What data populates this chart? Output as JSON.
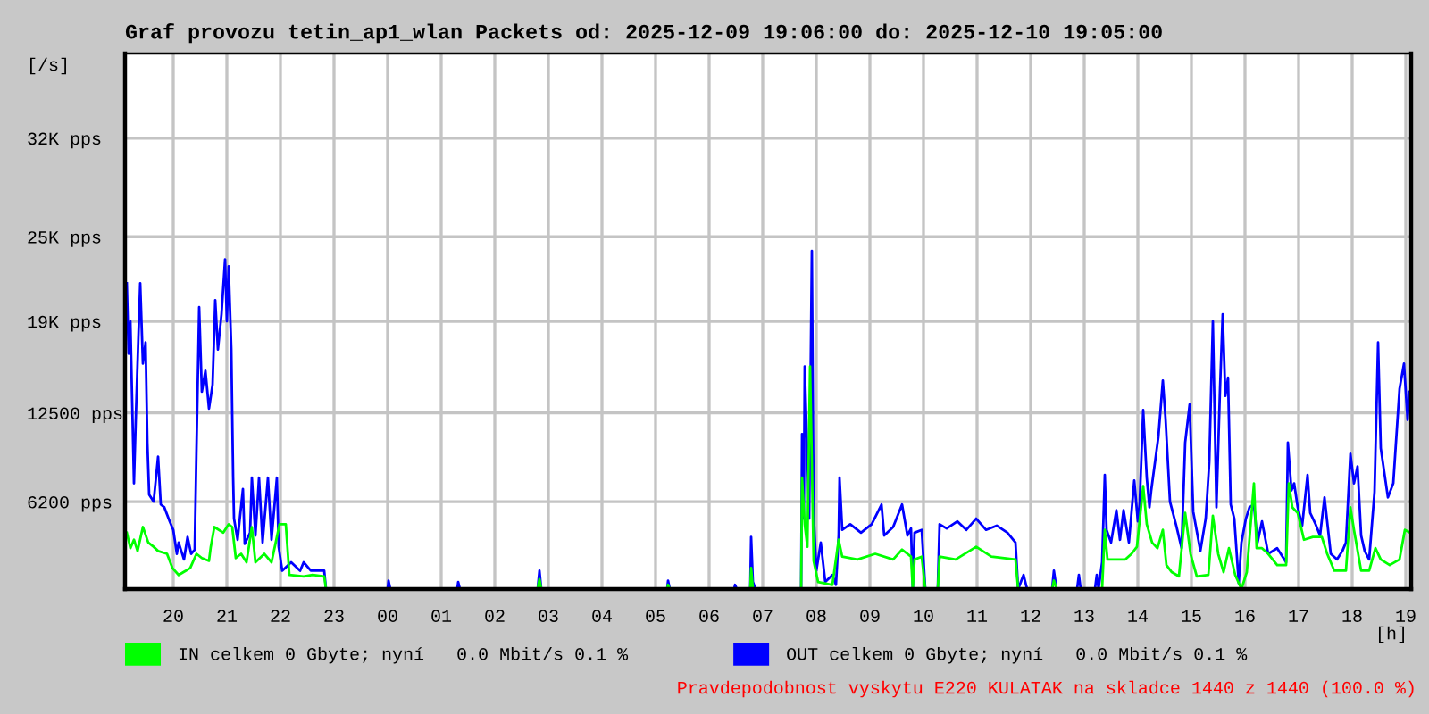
{
  "chart_data": {
    "type": "line",
    "title": "Graf provozu tetin_ap1_wlan Packets od: 2025-12-09 19:06:00 do: 2025-12-10 19:05:00",
    "xlabel": "[h]",
    "ylabel": "[/s]",
    "xlim": [
      "2025-12-09T19:06",
      "2025-12-10T19:06"
    ],
    "ylim": [
      0,
      38000
    ],
    "xticks": [
      {
        "value": "2025-12-09T20:00",
        "label": "20"
      },
      {
        "value": "2025-12-09T21:00",
        "label": "21"
      },
      {
        "value": "2025-12-09T22:00",
        "label": "22"
      },
      {
        "value": "2025-12-09T23:00",
        "label": "23"
      },
      {
        "value": "2025-12-10T00:00",
        "label": "00"
      },
      {
        "value": "2025-12-10T01:00",
        "label": "01"
      },
      {
        "value": "2025-12-10T02:00",
        "label": "02"
      },
      {
        "value": "2025-12-10T03:00",
        "label": "03"
      },
      {
        "value": "2025-12-10T04:00",
        "label": "04"
      },
      {
        "value": "2025-12-10T05:00",
        "label": "05"
      },
      {
        "value": "2025-12-10T06:00",
        "label": "06"
      },
      {
        "value": "2025-12-10T07:00",
        "label": "07"
      },
      {
        "value": "2025-12-10T08:00",
        "label": "08"
      },
      {
        "value": "2025-12-10T09:00",
        "label": "09"
      },
      {
        "value": "2025-12-10T10:00",
        "label": "10"
      },
      {
        "value": "2025-12-10T11:00",
        "label": "11"
      },
      {
        "value": "2025-12-10T12:00",
        "label": "12"
      },
      {
        "value": "2025-12-10T13:00",
        "label": "13"
      },
      {
        "value": "2025-12-10T14:00",
        "label": "14"
      },
      {
        "value": "2025-12-10T15:00",
        "label": "15"
      },
      {
        "value": "2025-12-10T16:00",
        "label": "16"
      },
      {
        "value": "2025-12-10T17:00",
        "label": "17"
      },
      {
        "value": "2025-12-10T18:00",
        "label": "18"
      },
      {
        "value": "2025-12-10T19:00",
        "label": "19"
      }
    ],
    "yticks": [
      {
        "value": 6200,
        "label": "6200 pps"
      },
      {
        "value": 12500,
        "label": "12500 pps"
      },
      {
        "value": 19000,
        "label": "19K pps"
      },
      {
        "value": 25000,
        "label": "25K pps"
      },
      {
        "value": 32000,
        "label": "32K pps"
      }
    ],
    "grid": true,
    "legend": "bottom",
    "line_style": "solid",
    "annotations": [
      "Pravdepodobnost vyskytu E220 KULATAK na skladce 1440 z 1440 (100.0 %)"
    ],
    "series": [
      {
        "name": "IN celkem 0 Gbyte; nyní   0.0 Mbit/s 0.1 %",
        "color": "#00ff00",
        "x": [
          "2025-12-09T19:08",
          "2025-12-09T19:12",
          "2025-12-09T19:16",
          "2025-12-09T19:20",
          "2025-12-09T19:26",
          "2025-12-09T19:32",
          "2025-12-09T19:38",
          "2025-12-09T19:43",
          "2025-12-09T19:53",
          "2025-12-09T19:59",
          "2025-12-09T20:06",
          "2025-12-09T20:14",
          "2025-12-09T20:19",
          "2025-12-09T20:26",
          "2025-12-09T20:32",
          "2025-12-09T20:40",
          "2025-12-09T20:42",
          "2025-12-09T20:46",
          "2025-12-09T20:56",
          "2025-12-09T21:02",
          "2025-12-09T21:06",
          "2025-12-09T21:10",
          "2025-12-09T21:16",
          "2025-12-09T21:22",
          "2025-12-09T21:28",
          "2025-12-09T21:32",
          "2025-12-09T21:42",
          "2025-12-09T21:50",
          "2025-12-09T21:59",
          "2025-12-09T22:06",
          "2025-12-09T22:10",
          "2025-12-09T22:26",
          "2025-12-09T22:36",
          "2025-12-09T22:49",
          "2025-12-09T22:51",
          "2025-12-10T02:48",
          "2025-12-10T02:50",
          "2025-12-10T02:52",
          "2025-12-10T05:13",
          "2025-12-10T05:14",
          "2025-12-10T05:16",
          "2025-12-10T06:46",
          "2025-12-10T06:47",
          "2025-12-10T06:49",
          "2025-12-10T07:43",
          "2025-12-10T07:44",
          "2025-12-10T07:47",
          "2025-12-10T07:50",
          "2025-12-10T07:53",
          "2025-12-10T07:57",
          "2025-12-10T08:02",
          "2025-12-10T08:18",
          "2025-12-10T08:25",
          "2025-12-10T08:29",
          "2025-12-10T08:46",
          "2025-12-10T09:06",
          "2025-12-10T09:26",
          "2025-12-10T09:36",
          "2025-12-10T09:46",
          "2025-12-10T09:48",
          "2025-12-10T09:50",
          "2025-12-10T09:58",
          "2025-12-10T10:02",
          "2025-12-10T10:16",
          "2025-12-10T10:18",
          "2025-12-10T10:36",
          "2025-12-10T10:59",
          "2025-12-10T11:16",
          "2025-12-10T11:43",
          "2025-12-10T11:46",
          "2025-12-10T12:24",
          "2025-12-10T12:26",
          "2025-12-10T12:29",
          "2025-12-10T13:20",
          "2025-12-10T13:23",
          "2025-12-10T13:26",
          "2025-12-10T13:46",
          "2025-12-10T13:53",
          "2025-12-10T13:59",
          "2025-12-10T14:06",
          "2025-12-10T14:10",
          "2025-12-10T14:16",
          "2025-12-10T14:22",
          "2025-12-10T14:28",
          "2025-12-10T14:32",
          "2025-12-10T14:38",
          "2025-12-10T14:46",
          "2025-12-10T14:53",
          "2025-12-10T14:59",
          "2025-12-10T15:06",
          "2025-12-10T15:19",
          "2025-12-10T15:24",
          "2025-12-10T15:30",
          "2025-12-10T15:36",
          "2025-12-10T15:42",
          "2025-12-10T15:49",
          "2025-12-10T15:56",
          "2025-12-10T16:02",
          "2025-12-10T16:10",
          "2025-12-10T16:13",
          "2025-12-10T16:19",
          "2025-12-10T16:26",
          "2025-12-10T16:36",
          "2025-12-10T16:46",
          "2025-12-10T16:49",
          "2025-12-10T16:53",
          "2025-12-10T16:59",
          "2025-12-10T17:06",
          "2025-12-10T17:16",
          "2025-12-10T17:26",
          "2025-12-10T17:32",
          "2025-12-10T17:40",
          "2025-12-10T17:53",
          "2025-12-10T17:58",
          "2025-12-10T18:02",
          "2025-12-10T18:10",
          "2025-12-10T18:19",
          "2025-12-10T18:26",
          "2025-12-10T18:32",
          "2025-12-10T18:42",
          "2025-12-10T18:53",
          "2025-12-10T18:59",
          "2025-12-10T19:05"
        ],
        "values": [
          4000,
          2900,
          3500,
          2700,
          4400,
          3300,
          3000,
          2700,
          2500,
          1500,
          1000,
          1300,
          1500,
          2500,
          2200,
          2000,
          3000,
          4400,
          4000,
          4600,
          4400,
          2200,
          2500,
          1900,
          4400,
          1900,
          2500,
          1900,
          4600,
          4600,
          1000,
          900,
          1000,
          900,
          0,
          0,
          700,
          0,
          0,
          300,
          0,
          0,
          1500,
          0,
          0,
          7900,
          4600,
          3000,
          15800,
          2000,
          500,
          300,
          3500,
          2300,
          2100,
          2500,
          2100,
          2800,
          2300,
          0,
          2100,
          2300,
          0,
          0,
          2300,
          2100,
          3000,
          2300,
          2100,
          0,
          0,
          600,
          0,
          0,
          4200,
          2100,
          2100,
          2500,
          3000,
          7300,
          4600,
          3300,
          2900,
          4200,
          1700,
          1200,
          900,
          5400,
          2500,
          900,
          1000,
          5200,
          2500,
          1200,
          2900,
          1000,
          0,
          1200,
          7500,
          2900,
          2900,
          2500,
          1700,
          1700,
          7500,
          5800,
          5400,
          3500,
          3700,
          3700,
          2500,
          1300,
          1300,
          5800,
          4200,
          1300,
          1300,
          2900,
          2100,
          1700,
          2100,
          4200,
          4000
        ]
      },
      {
        "name": "OUT celkem 0 Gbyte; nyní   0.0 Mbit/s 0.1 %",
        "color": "#0000ff",
        "x": [
          "2025-12-09T19:08",
          "2025-12-09T19:10",
          "2025-12-09T19:12",
          "2025-12-09T19:16",
          "2025-12-09T19:18",
          "2025-12-09T19:21",
          "2025-12-09T19:23",
          "2025-12-09T19:26",
          "2025-12-09T19:29",
          "2025-12-09T19:31",
          "2025-12-09T19:33",
          "2025-12-09T19:38",
          "2025-12-09T19:43",
          "2025-12-09T19:46",
          "2025-12-09T19:50",
          "2025-12-09T19:56",
          "2025-12-09T20:00",
          "2025-12-09T20:04",
          "2025-12-09T20:06",
          "2025-12-09T20:12",
          "2025-12-09T20:16",
          "2025-12-09T20:20",
          "2025-12-09T20:24",
          "2025-12-09T20:26",
          "2025-12-09T20:29",
          "2025-12-09T20:32",
          "2025-12-09T20:36",
          "2025-12-09T20:40",
          "2025-12-09T20:44",
          "2025-12-09T20:47",
          "2025-12-09T20:50",
          "2025-12-09T20:54",
          "2025-12-09T20:58",
          "2025-12-09T21:00",
          "2025-12-09T21:02",
          "2025-12-09T21:05",
          "2025-12-09T21:07",
          "2025-12-09T21:08",
          "2025-12-09T21:12",
          "2025-12-09T21:18",
          "2025-12-09T21:20",
          "2025-12-09T21:26",
          "2025-12-09T21:28",
          "2025-12-09T21:32",
          "2025-12-09T21:36",
          "2025-12-09T21:40",
          "2025-12-09T21:46",
          "2025-12-09T21:50",
          "2025-12-09T21:56",
          "2025-12-09T21:58",
          "2025-12-09T22:02",
          "2025-12-09T22:12",
          "2025-12-09T22:22",
          "2025-12-09T22:26",
          "2025-12-09T22:34",
          "2025-12-09T22:49",
          "2025-12-09T22:51",
          "2025-12-10T00:00",
          "2025-12-10T00:01",
          "2025-12-10T00:03",
          "2025-12-10T01:18",
          "2025-12-10T01:19",
          "2025-12-10T01:21",
          "2025-12-10T02:48",
          "2025-12-10T02:50",
          "2025-12-10T02:52",
          "2025-12-10T05:13",
          "2025-12-10T05:14",
          "2025-12-10T05:16",
          "2025-12-10T06:28",
          "2025-12-10T06:29",
          "2025-12-10T06:31",
          "2025-12-10T06:46",
          "2025-12-10T06:47",
          "2025-12-10T06:49",
          "2025-12-10T06:52",
          "2025-12-10T07:43",
          "2025-12-10T07:44",
          "2025-12-10T07:46",
          "2025-12-10T07:47",
          "2025-12-10T07:52",
          "2025-12-10T07:55",
          "2025-12-10T07:57",
          "2025-12-10T08:00",
          "2025-12-10T08:05",
          "2025-12-10T08:10",
          "2025-12-10T08:18",
          "2025-12-10T08:22",
          "2025-12-10T08:25",
          "2025-12-10T08:26",
          "2025-12-10T08:29",
          "2025-12-10T08:38",
          "2025-12-10T08:50",
          "2025-12-10T09:02",
          "2025-12-10T09:13",
          "2025-12-10T09:16",
          "2025-12-10T09:26",
          "2025-12-10T09:36",
          "2025-12-10T09:42",
          "2025-12-10T09:46",
          "2025-12-10T09:48",
          "2025-12-10T09:50",
          "2025-12-10T09:58",
          "2025-12-10T10:02",
          "2025-12-10T10:16",
          "2025-12-10T10:18",
          "2025-12-10T10:26",
          "2025-12-10T10:38",
          "2025-12-10T10:48",
          "2025-12-10T10:59",
          "2025-12-10T11:10",
          "2025-12-10T11:22",
          "2025-12-10T11:34",
          "2025-12-10T11:43",
          "2025-12-10T11:46",
          "2025-12-10T11:52",
          "2025-12-10T11:56",
          "2025-12-10T12:24",
          "2025-12-10T12:26",
          "2025-12-10T12:29",
          "2025-12-10T12:52",
          "2025-12-10T12:54",
          "2025-12-10T12:56",
          "2025-12-10T13:12",
          "2025-12-10T13:14",
          "2025-12-10T13:16",
          "2025-12-10T13:20",
          "2025-12-10T13:23",
          "2025-12-10T13:25",
          "2025-12-10T13:30",
          "2025-12-10T13:36",
          "2025-12-10T13:40",
          "2025-12-10T13:44",
          "2025-12-10T13:50",
          "2025-12-10T13:56",
          "2025-12-10T14:00",
          "2025-12-10T14:02",
          "2025-12-10T14:06",
          "2025-12-10T14:10",
          "2025-12-10T14:13",
          "2025-12-10T14:15",
          "2025-12-10T14:23",
          "2025-12-10T14:28",
          "2025-12-10T14:31",
          "2025-12-10T14:36",
          "2025-12-10T14:43",
          "2025-12-10T14:49",
          "2025-12-10T14:53",
          "2025-12-10T14:58",
          "2025-12-10T15:02",
          "2025-12-10T15:10",
          "2025-12-10T15:16",
          "2025-12-10T15:20",
          "2025-12-10T15:24",
          "2025-12-10T15:28",
          "2025-12-10T15:32",
          "2025-12-10T15:35",
          "2025-12-10T15:38",
          "2025-12-10T15:41",
          "2025-12-10T15:44",
          "2025-12-10T15:48",
          "2025-12-10T15:53",
          "2025-12-10T15:56",
          "2025-12-10T16:01",
          "2025-12-10T16:05",
          "2025-12-10T16:10",
          "2025-12-10T16:14",
          "2025-12-10T16:19",
          "2025-12-10T16:26",
          "2025-12-10T16:36",
          "2025-12-10T16:46",
          "2025-12-10T16:48",
          "2025-12-10T16:52",
          "2025-12-10T16:55",
          "2025-12-10T16:59",
          "2025-12-10T17:04",
          "2025-12-10T17:10",
          "2025-12-10T17:13",
          "2025-12-10T17:19",
          "2025-12-10T17:24",
          "2025-12-10T17:29",
          "2025-12-10T17:36",
          "2025-12-10T17:43",
          "2025-12-10T17:49",
          "2025-12-10T17:53",
          "2025-12-10T17:58",
          "2025-12-10T18:02",
          "2025-12-10T18:06",
          "2025-12-10T18:10",
          "2025-12-10T18:14",
          "2025-12-10T18:19",
          "2025-12-10T18:25",
          "2025-12-10T18:29",
          "2025-12-10T18:32",
          "2025-12-10T18:40",
          "2025-12-10T18:46",
          "2025-12-10T18:53",
          "2025-12-10T18:58",
          "2025-12-10T19:02",
          "2025-12-10T19:04"
        ],
        "values": [
          21700,
          16700,
          19000,
          7500,
          12000,
          18000,
          21700,
          16000,
          17500,
          10400,
          6700,
          6200,
          9400,
          6000,
          5800,
          4800,
          4200,
          2500,
          3300,
          2100,
          3700,
          2500,
          2800,
          10000,
          20000,
          14000,
          15500,
          12800,
          14500,
          20500,
          17000,
          19500,
          23400,
          19000,
          22900,
          17000,
          8000,
          5000,
          3500,
          7100,
          3200,
          4000,
          7900,
          3800,
          7900,
          3300,
          7900,
          3500,
          7900,
          3000,
          1300,
          1900,
          1300,
          1900,
          1300,
          1300,
          0,
          0,
          600,
          0,
          0,
          500,
          0,
          0,
          1300,
          0,
          0,
          600,
          0,
          0,
          300,
          0,
          0,
          3700,
          500,
          0,
          0,
          11000,
          5000,
          15800,
          5000,
          24000,
          5400,
          1300,
          3300,
          500,
          1000,
          300,
          3800,
          7900,
          4200,
          4600,
          4000,
          4600,
          6000,
          3800,
          4400,
          6000,
          3800,
          4300,
          0,
          4000,
          4200,
          0,
          0,
          4600,
          4300,
          4800,
          4200,
          5000,
          4200,
          4500,
          4000,
          3300,
          0,
          1000,
          0,
          0,
          1300,
          0,
          0,
          1000,
          0,
          0,
          1000,
          0,
          1900,
          8100,
          4200,
          3300,
          5600,
          3500,
          5600,
          3300,
          7700,
          4800,
          6000,
          12700,
          7900,
          5800,
          7000,
          10800,
          14800,
          12100,
          6200,
          4500,
          2900,
          10400,
          13100,
          5500,
          2700,
          5000,
          9000,
          19000,
          5800,
          14200,
          19500,
          13700,
          15000,
          6000,
          5000,
          400,
          3300,
          5000,
          5800,
          6000,
          3300,
          4800,
          2500,
          2900,
          1900,
          10400,
          7000,
          7500,
          5800,
          4500,
          8100,
          5400,
          4600,
          3800,
          6500,
          2500,
          2100,
          2700,
          3300,
          9600,
          7500,
          8700,
          3800,
          2700,
          2100,
          6900,
          17500,
          10000,
          6500,
          7500,
          14200,
          16000,
          12000,
          14000
        ]
      }
    ]
  }
}
